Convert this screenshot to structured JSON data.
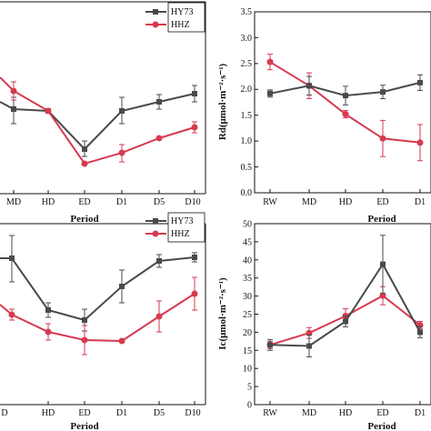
{
  "colors": {
    "HY73": "#4a4a4a",
    "HHZ": "#d63a50"
  },
  "chart_data": [
    {
      "type": "line",
      "panel": "top-left",
      "categories": [
        "MD",
        "HD",
        "ED",
        "D1",
        "D5",
        "D10"
      ],
      "xlabel": "Period",
      "ylabel": "",
      "legend_position": "top-right",
      "series": [
        {
          "name": "HY73",
          "values": [
            null,
            null,
            null,
            null,
            null,
            null
          ]
        },
        {
          "name": "HHZ",
          "values": [
            null,
            null,
            null,
            null,
            null,
            null
          ]
        }
      ]
    },
    {
      "type": "line",
      "panel": "top-right",
      "categories": [
        "RW",
        "MD",
        "HD",
        "ED",
        "D1"
      ],
      "xlabel": "Period",
      "ylabel": "Rd(μmol·m⁻²·s⁻¹)",
      "ylim": [
        0,
        3.5
      ],
      "yticks": [
        "0.0",
        "0.5",
        "1.0",
        "1.5",
        "2.0",
        "2.5",
        "3.0",
        "3.5"
      ],
      "series": [
        {
          "name": "HY73",
          "values": [
            1.92,
            2.07,
            1.88,
            1.95,
            2.13
          ],
          "err": [
            0.07,
            0.18,
            0.18,
            0.13,
            0.15
          ]
        },
        {
          "name": "HHZ",
          "values": [
            2.53,
            2.07,
            1.52,
            1.05,
            0.97
          ],
          "err": [
            0.15,
            0.25,
            0.07,
            0.35,
            0.35
          ]
        }
      ]
    },
    {
      "type": "line",
      "panel": "bottom-left",
      "categories": [
        "HD",
        "ED",
        "D1",
        "D5",
        "D10"
      ],
      "xlabel": "Period",
      "ylabel": "",
      "legend_position": "top-right",
      "series": [
        {
          "name": "HY73",
          "values": [
            null,
            null,
            null,
            null,
            null
          ]
        },
        {
          "name": "HHZ",
          "values": [
            null,
            null,
            null,
            null,
            null
          ]
        }
      ]
    },
    {
      "type": "line",
      "panel": "bottom-right",
      "categories": [
        "RW",
        "MD",
        "HD",
        "ED",
        "D1"
      ],
      "xlabel": "Period",
      "ylabel": "Ic(μmol·m⁻²·s⁻¹)",
      "ylim": [
        0,
        50
      ],
      "yticks": [
        "0",
        "5",
        "10",
        "15",
        "20",
        "25",
        "30",
        "35",
        "40",
        "45",
        "50"
      ],
      "series": [
        {
          "name": "HY73",
          "values": [
            16.5,
            16.2,
            23.0,
            38.8,
            20.0
          ],
          "err": [
            1.5,
            3.0,
            1.5,
            8.0,
            1.5
          ]
        },
        {
          "name": "HHZ",
          "values": [
            16.5,
            19.8,
            24.5,
            30.1,
            22.0
          ],
          "err": [
            1.0,
            1.5,
            2.0,
            2.5,
            1.0
          ]
        }
      ]
    }
  ]
}
